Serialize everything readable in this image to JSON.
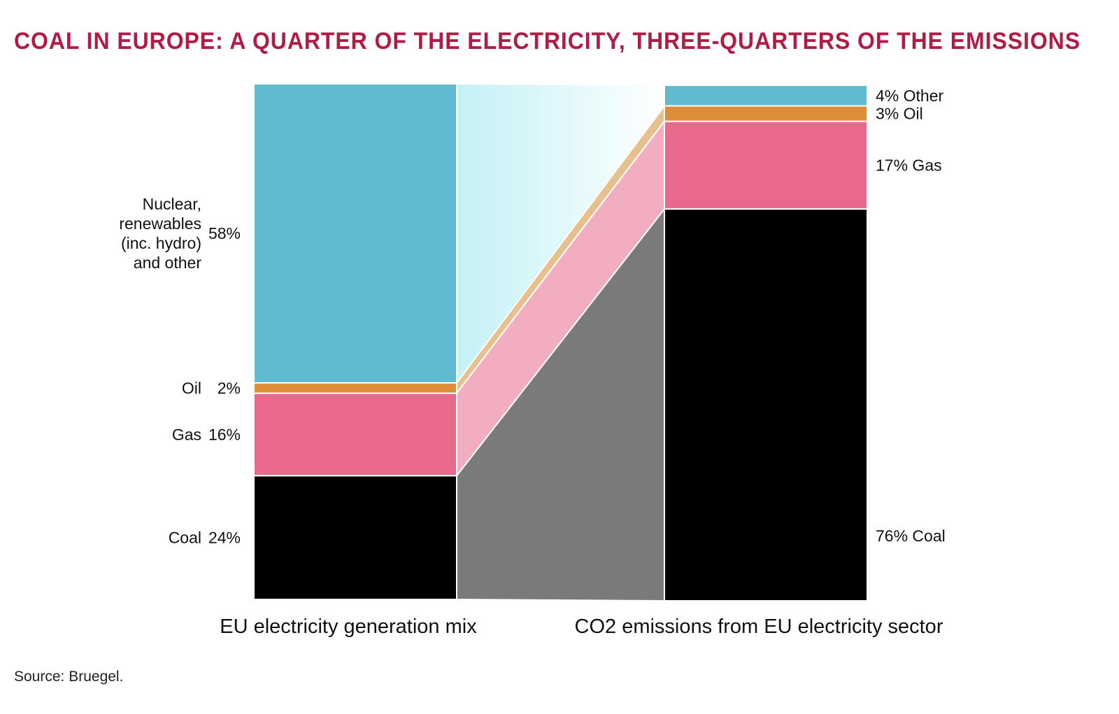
{
  "chart_data": {
    "type": "bar",
    "subtype": "stacked-100-percent with flow ribbons",
    "title": "COAL IN EUROPE: A QUARTER OF THE ELECTRICITY, THREE-QUARTERS OF THE EMISSIONS",
    "source": "Source: Bruegel.",
    "categories": [
      "EU electricity generation mix",
      "CO2 emissions from EU electricity sector"
    ],
    "ylim": [
      0,
      100
    ],
    "unit": "%",
    "series": [
      {
        "key": "coal",
        "values": [
          24,
          76
        ],
        "labels": [
          "Coal",
          "76% Coal"
        ],
        "left_pct": "24%",
        "color": "#000000",
        "flow_color": "#7a7a7a"
      },
      {
        "key": "gas",
        "values": [
          16,
          17
        ],
        "labels": [
          "Gas",
          "17% Gas"
        ],
        "left_pct": "16%",
        "color": "#e8698a",
        "flow_color": "#f2adc0"
      },
      {
        "key": "oil",
        "values": [
          2,
          3
        ],
        "labels": [
          "Oil",
          "3% Oil"
        ],
        "left_pct": "2%",
        "color": "#de8e38",
        "flow_color": "#e8c08e"
      },
      {
        "key": "other",
        "values": [
          58,
          4
        ],
        "labels": [
          "Nuclear,|renewables|(inc. hydro)|and other",
          "4% Other"
        ],
        "left_pct": "58%",
        "color": "#62bace",
        "flow_color": "#c4f1f6"
      }
    ],
    "grid": false,
    "legend": "none"
  }
}
